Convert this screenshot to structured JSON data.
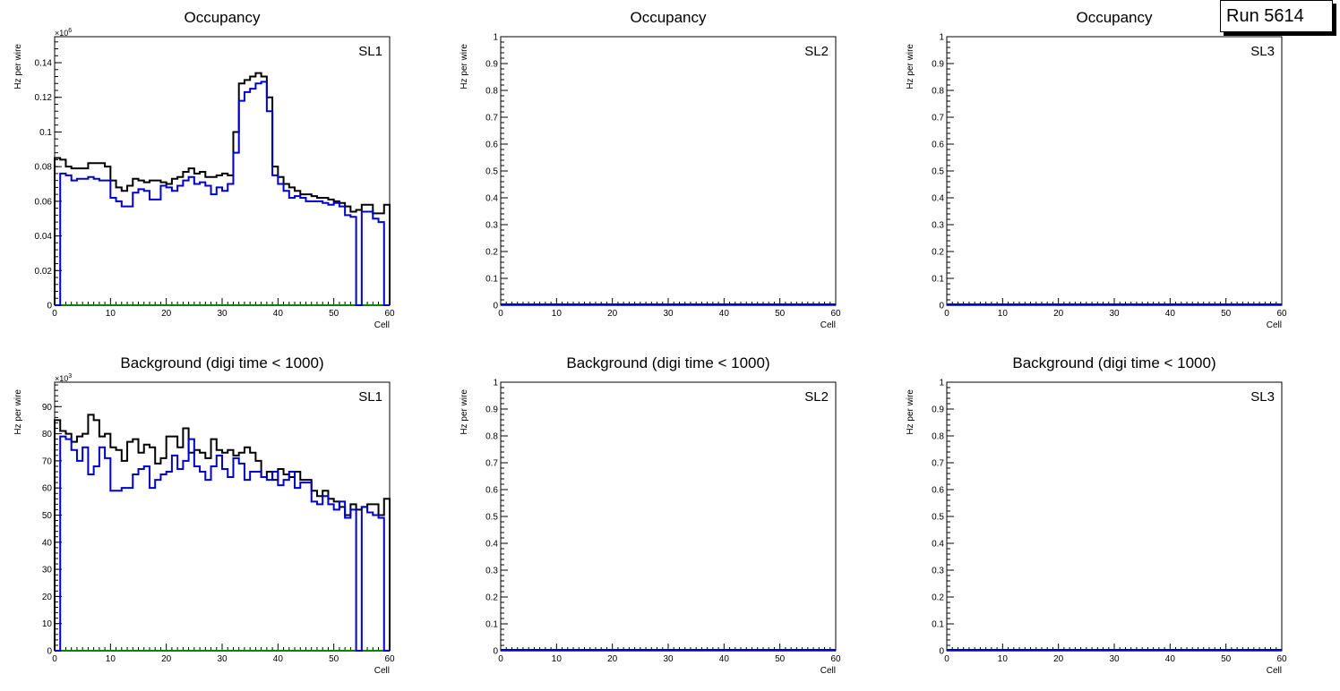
{
  "run_label": "Run 5614",
  "colors": {
    "total": "#000000",
    "in_time": "#0000cc",
    "zero_line": "#008800"
  },
  "chart_data": [
    {
      "type": "line",
      "step": true,
      "title": "Occupancy",
      "label": "SL1",
      "xlabel": "Cell",
      "ylabel": "Hz per wire",
      "exponent": "×10^6",
      "xlim": [
        0,
        60
      ],
      "ylim": [
        0,
        0.155
      ],
      "xticks": [
        0,
        10,
        20,
        30,
        40,
        50,
        60
      ],
      "yticks": [
        0,
        0.02,
        0.04,
        0.06,
        0.08,
        0.1,
        0.12,
        0.14
      ],
      "ytick_labels": [
        "0",
        "0.02",
        "0.04",
        "0.06",
        "0.08",
        "0.1",
        "0.12",
        "0.14"
      ],
      "bins": 60,
      "series": [
        {
          "values": [
            0.085,
            0.084,
            0.08,
            0.079,
            0.079,
            0.079,
            0.082,
            0.082,
            0.082,
            0.08,
            0.072,
            0.068,
            0.066,
            0.069,
            0.073,
            0.072,
            0.071,
            0.072,
            0.072,
            0.071,
            0.07,
            0.073,
            0.074,
            0.077,
            0.079,
            0.076,
            0.077,
            0.074,
            0.074,
            0.075,
            0.076,
            0.075,
            0.1,
            0.128,
            0.13,
            0.132,
            0.134,
            0.132,
            0.12,
            0.08,
            0.074,
            0.07,
            0.068,
            0.066,
            0.064,
            0.064,
            0.063,
            0.062,
            0.062,
            0.061,
            0.06,
            0.059,
            0.057,
            0.054,
            0.055,
            0.058,
            0.058,
            0.053,
            0.053,
            0.058
          ]
        },
        {
          "values": [
            0,
            0.076,
            0.075,
            0.072,
            0.073,
            0.073,
            0.074,
            0.073,
            0.072,
            0.072,
            0.062,
            0.06,
            0.057,
            0.057,
            0.065,
            0.067,
            0.066,
            0.061,
            0.061,
            0.069,
            0.068,
            0.066,
            0.069,
            0.072,
            0.074,
            0.07,
            0.071,
            0.069,
            0.064,
            0.068,
            0.066,
            0.07,
            0.088,
            0.118,
            0.123,
            0.125,
            0.128,
            0.129,
            0.112,
            0.075,
            0.07,
            0.066,
            0.062,
            0.063,
            0.062,
            0.06,
            0.06,
            0.06,
            0.059,
            0.058,
            0.059,
            0.057,
            0.052,
            0.051,
            0,
            0.054,
            0.054,
            0.05,
            0.048,
            0
          ]
        }
      ]
    },
    {
      "type": "line",
      "step": true,
      "title": "Occupancy",
      "label": "SL2",
      "xlabel": "Cell",
      "ylabel": "Hz per wire",
      "exponent": "",
      "xlim": [
        0,
        60
      ],
      "ylim": [
        0,
        1
      ],
      "xticks": [
        0,
        10,
        20,
        30,
        40,
        50,
        60
      ],
      "yticks": [
        0,
        0.1,
        0.2,
        0.3,
        0.4,
        0.5,
        0.6,
        0.7,
        0.8,
        0.9,
        1
      ],
      "ytick_labels": [
        "0",
        "0.1",
        "0.2",
        "0.3",
        "0.4",
        "0.5",
        "0.6",
        "0.7",
        "0.8",
        "0.9",
        "1"
      ],
      "bins": 60,
      "series": [
        {
          "values": []
        },
        {
          "values": []
        }
      ]
    },
    {
      "type": "line",
      "step": true,
      "title": "Occupancy",
      "label": "SL3",
      "xlabel": "Cell",
      "ylabel": "Hz per wire",
      "exponent": "",
      "xlim": [
        0,
        60
      ],
      "ylim": [
        0,
        1
      ],
      "xticks": [
        0,
        10,
        20,
        30,
        40,
        50,
        60
      ],
      "yticks": [
        0,
        0.1,
        0.2,
        0.3,
        0.4,
        0.5,
        0.6,
        0.7,
        0.8,
        0.9,
        1
      ],
      "ytick_labels": [
        "0",
        "0.1",
        "0.2",
        "0.3",
        "0.4",
        "0.5",
        "0.6",
        "0.7",
        "0.8",
        "0.9",
        "1"
      ],
      "bins": 60,
      "series": [
        {
          "values": []
        },
        {
          "values": []
        }
      ]
    },
    {
      "type": "line",
      "step": true,
      "title": "Background (digi time < 1000)",
      "label": "SL1",
      "xlabel": "Cell",
      "ylabel": "Hz per wire",
      "exponent": "×10^3",
      "xlim": [
        0,
        60
      ],
      "ylim": [
        0,
        99
      ],
      "xticks": [
        0,
        10,
        20,
        30,
        40,
        50,
        60
      ],
      "yticks": [
        0,
        10,
        20,
        30,
        40,
        50,
        60,
        70,
        80,
        90
      ],
      "ytick_labels": [
        "0",
        "10",
        "20",
        "30",
        "40",
        "50",
        "60",
        "70",
        "80",
        "90"
      ],
      "bins": 60,
      "series": [
        {
          "values": [
            85,
            81,
            80,
            77,
            79,
            80,
            87,
            85,
            79,
            80,
            75,
            74,
            70,
            77,
            78,
            73,
            76,
            75,
            69,
            71,
            79,
            79,
            75,
            82,
            73,
            74,
            73,
            71,
            78,
            74,
            73,
            74,
            72,
            73,
            75,
            73,
            70,
            64,
            66,
            63,
            67,
            65,
            64,
            66,
            63,
            63,
            59,
            57,
            59,
            56,
            55,
            53,
            50,
            54,
            52,
            53,
            54,
            54,
            50,
            56
          ]
        },
        {
          "values": [
            0,
            79,
            78,
            74,
            70,
            75,
            65,
            68,
            75,
            71,
            59,
            59,
            60,
            60,
            65,
            67,
            68,
            60,
            63,
            65,
            66,
            72,
            67,
            70,
            78,
            68,
            66,
            63,
            68,
            72,
            67,
            64,
            71,
            69,
            63,
            66,
            66,
            64,
            63,
            66,
            61,
            63,
            66,
            60,
            62,
            62,
            55,
            54,
            57,
            54,
            52,
            55,
            49,
            52,
            0,
            53,
            51,
            50,
            49,
            0
          ]
        }
      ]
    },
    {
      "type": "line",
      "step": true,
      "title": "Background (digi time < 1000)",
      "label": "SL2",
      "xlabel": "Cell",
      "ylabel": "Hz per wire",
      "exponent": "",
      "xlim": [
        0,
        60
      ],
      "ylim": [
        0,
        1
      ],
      "xticks": [
        0,
        10,
        20,
        30,
        40,
        50,
        60
      ],
      "yticks": [
        0,
        0.1,
        0.2,
        0.3,
        0.4,
        0.5,
        0.6,
        0.7,
        0.8,
        0.9,
        1
      ],
      "ytick_labels": [
        "0",
        "0.1",
        "0.2",
        "0.3",
        "0.4",
        "0.5",
        "0.6",
        "0.7",
        "0.8",
        "0.9",
        "1"
      ],
      "bins": 60,
      "series": [
        {
          "values": []
        },
        {
          "values": []
        }
      ]
    },
    {
      "type": "line",
      "step": true,
      "title": "Background (digi time < 1000)",
      "label": "SL3",
      "xlabel": "Cell",
      "ylabel": "Hz per wire",
      "exponent": "",
      "xlim": [
        0,
        60
      ],
      "ylim": [
        0,
        1
      ],
      "xticks": [
        0,
        10,
        20,
        30,
        40,
        50,
        60
      ],
      "yticks": [
        0,
        0.1,
        0.2,
        0.3,
        0.4,
        0.5,
        0.6,
        0.7,
        0.8,
        0.9,
        1
      ],
      "ytick_labels": [
        "0",
        "0.1",
        "0.2",
        "0.3",
        "0.4",
        "0.5",
        "0.6",
        "0.7",
        "0.8",
        "0.9",
        "1"
      ],
      "bins": 60,
      "series": [
        {
          "values": []
        },
        {
          "values": []
        }
      ]
    }
  ]
}
